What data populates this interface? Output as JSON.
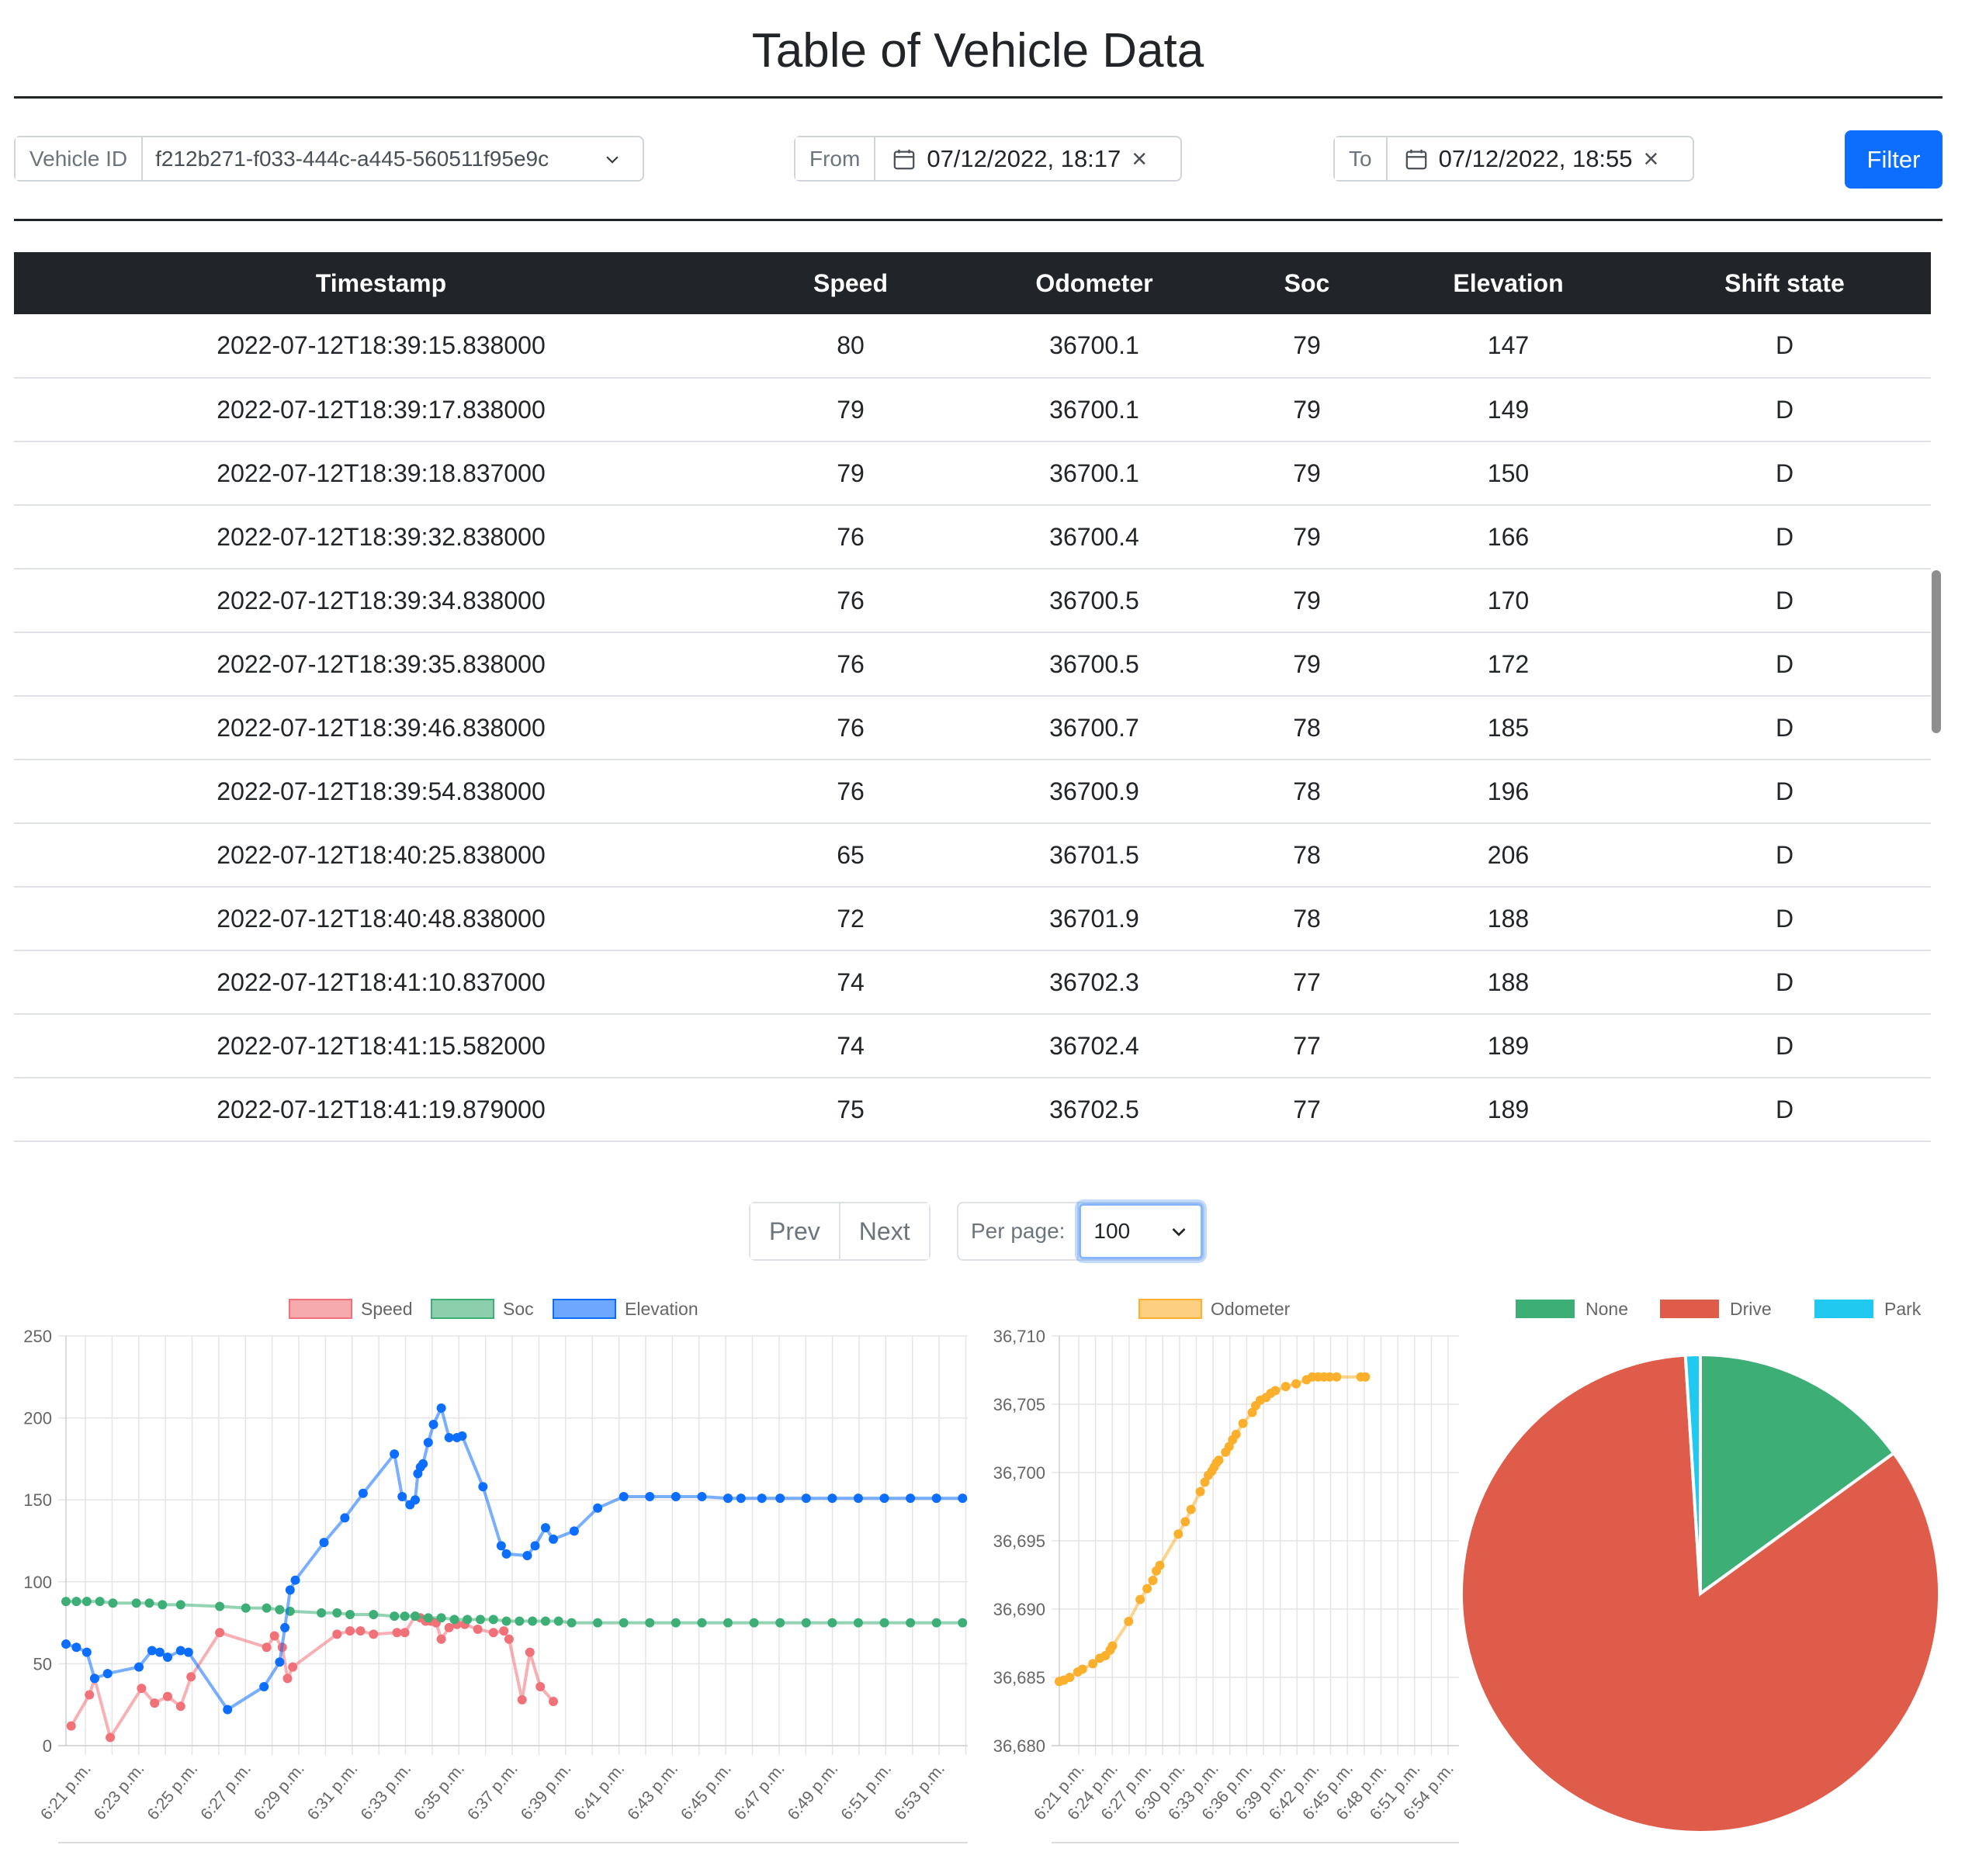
{
  "page": {
    "title": "Table of Vehicle Data"
  },
  "filters": {
    "vehicle_label": "Vehicle ID",
    "vehicle_value": "f212b271-f033-444c-a445-560511f95e9c",
    "from_label": "From",
    "from_value": "07/12/2022, 18:17",
    "to_label": "To",
    "to_value": "07/12/2022, 18:55",
    "filter_button": "Filter",
    "clear_glyph": "×"
  },
  "table": {
    "headers": [
      "Timestamp",
      "Speed",
      "Odometer",
      "Soc",
      "Elevation",
      "Shift state"
    ],
    "rows": [
      [
        "2022-07-12T18:39:15.838000",
        "80",
        "36700.1",
        "79",
        "147",
        "D"
      ],
      [
        "2022-07-12T18:39:17.838000",
        "79",
        "36700.1",
        "79",
        "149",
        "D"
      ],
      [
        "2022-07-12T18:39:18.837000",
        "79",
        "36700.1",
        "79",
        "150",
        "D"
      ],
      [
        "2022-07-12T18:39:32.838000",
        "76",
        "36700.4",
        "79",
        "166",
        "D"
      ],
      [
        "2022-07-12T18:39:34.838000",
        "76",
        "36700.5",
        "79",
        "170",
        "D"
      ],
      [
        "2022-07-12T18:39:35.838000",
        "76",
        "36700.5",
        "79",
        "172",
        "D"
      ],
      [
        "2022-07-12T18:39:46.838000",
        "76",
        "36700.7",
        "78",
        "185",
        "D"
      ],
      [
        "2022-07-12T18:39:54.838000",
        "76",
        "36700.9",
        "78",
        "196",
        "D"
      ],
      [
        "2022-07-12T18:40:25.838000",
        "65",
        "36701.5",
        "78",
        "206",
        "D"
      ],
      [
        "2022-07-12T18:40:48.838000",
        "72",
        "36701.9",
        "78",
        "188",
        "D"
      ],
      [
        "2022-07-12T18:41:10.837000",
        "74",
        "36702.3",
        "77",
        "188",
        "D"
      ],
      [
        "2022-07-12T18:41:15.582000",
        "74",
        "36702.4",
        "77",
        "189",
        "D"
      ],
      [
        "2022-07-12T18:41:19.879000",
        "75",
        "36702.5",
        "77",
        "189",
        "D"
      ]
    ]
  },
  "pagination": {
    "prev": "Prev",
    "next": "Next",
    "per_page_label": "Per page:",
    "per_page_value": "100"
  },
  "colors": {
    "speed": "#f07178",
    "soc": "#3daf76",
    "elevation": "#0d6efd",
    "odometer": "#fbb02d",
    "none": "#3daf76",
    "drive": "#e05c4a",
    "park": "#20c9f0"
  },
  "chart_data": [
    {
      "type": "line",
      "legend": [
        "Speed",
        "Soc",
        "Elevation"
      ],
      "xlabel": "",
      "ylabel": "",
      "ylim": [
        0,
        250
      ],
      "yticks": [
        "0",
        "50",
        "100",
        "150",
        "200",
        "250"
      ],
      "x_ticks": [
        "6:21 p.m.",
        "6:23 p.m.",
        "6:25 p.m.",
        "6:27 p.m.",
        "6:29 p.m.",
        "6:31 p.m.",
        "6:33 p.m.",
        "6:35 p.m.",
        "6:37 p.m.",
        "6:39 p.m.",
        "6:41 p.m.",
        "6:43 p.m.",
        "6:45 p.m.",
        "6:47 p.m.",
        "6:49 p.m.",
        "6:51 p.m.",
        "6:53 p.m."
      ],
      "x_range": [
        20.6,
        55.2
      ],
      "series": [
        {
          "name": "Speed",
          "points": [
            [
              20.8,
              12
            ],
            [
              21.5,
              31
            ],
            [
              21.7,
              41
            ],
            [
              22.3,
              5
            ],
            [
              23.5,
              35
            ],
            [
              24.0,
              26
            ],
            [
              24.5,
              30
            ],
            [
              25.0,
              24
            ],
            [
              25.4,
              42
            ],
            [
              26.5,
              69
            ],
            [
              28.3,
              60
            ],
            [
              28.6,
              67
            ],
            [
              28.9,
              60
            ],
            [
              29.1,
              41
            ],
            [
              29.3,
              48
            ],
            [
              31.0,
              68
            ],
            [
              31.5,
              70
            ],
            [
              31.9,
              70
            ],
            [
              32.4,
              68
            ],
            [
              33.3,
              69
            ],
            [
              33.6,
              69
            ],
            [
              34.0,
              79
            ],
            [
              34.2,
              78
            ],
            [
              34.4,
              76
            ],
            [
              34.6,
              76
            ],
            [
              34.8,
              75
            ],
            [
              35.0,
              65
            ],
            [
              35.3,
              72
            ],
            [
              35.6,
              74
            ],
            [
              35.9,
              74
            ],
            [
              36.4,
              71
            ],
            [
              37.0,
              69
            ],
            [
              37.4,
              70
            ],
            [
              37.6,
              65
            ],
            [
              38.1,
              28
            ],
            [
              38.4,
              57
            ],
            [
              38.8,
              36
            ],
            [
              39.3,
              27
            ]
          ]
        },
        {
          "name": "Soc",
          "points": [
            [
              20.6,
              88
            ],
            [
              21.0,
              88
            ],
            [
              21.4,
              88
            ],
            [
              21.9,
              88
            ],
            [
              22.4,
              87
            ],
            [
              23.3,
              87
            ],
            [
              23.8,
              87
            ],
            [
              24.3,
              86
            ],
            [
              25.0,
              86
            ],
            [
              26.5,
              85
            ],
            [
              27.5,
              84
            ],
            [
              28.3,
              84
            ],
            [
              28.8,
              83
            ],
            [
              29.2,
              82
            ],
            [
              30.4,
              81
            ],
            [
              31.0,
              81
            ],
            [
              31.5,
              80
            ],
            [
              32.4,
              80
            ],
            [
              33.2,
              79
            ],
            [
              33.6,
              79
            ],
            [
              34.0,
              79
            ],
            [
              34.5,
              78
            ],
            [
              35.0,
              78
            ],
            [
              35.5,
              77
            ],
            [
              36.0,
              77
            ],
            [
              36.5,
              77
            ],
            [
              37.0,
              77
            ],
            [
              37.5,
              76
            ],
            [
              38.0,
              76
            ],
            [
              38.5,
              76
            ],
            [
              39.0,
              76
            ],
            [
              39.5,
              76
            ],
            [
              40.0,
              75
            ],
            [
              41.0,
              75
            ],
            [
              42.0,
              75
            ],
            [
              43.0,
              75
            ],
            [
              44.0,
              75
            ],
            [
              45.0,
              75
            ],
            [
              46.0,
              75
            ],
            [
              47.0,
              75
            ],
            [
              48.0,
              75
            ],
            [
              49.0,
              75
            ],
            [
              50.0,
              75
            ],
            [
              51.0,
              75
            ],
            [
              52.0,
              75
            ],
            [
              53.0,
              75
            ],
            [
              54.0,
              75
            ],
            [
              55.0,
              75
            ]
          ]
        },
        {
          "name": "Elevation",
          "points": [
            [
              20.6,
              62
            ],
            [
              21.0,
              60
            ],
            [
              21.4,
              57
            ],
            [
              21.7,
              41
            ],
            [
              22.2,
              44
            ],
            [
              23.4,
              48
            ],
            [
              23.9,
              58
            ],
            [
              24.2,
              57
            ],
            [
              24.5,
              54
            ],
            [
              25.0,
              58
            ],
            [
              25.3,
              57
            ],
            [
              26.8,
              22
            ],
            [
              28.2,
              36
            ],
            [
              28.8,
              51
            ],
            [
              29.0,
              72
            ],
            [
              29.2,
              95
            ],
            [
              29.4,
              101
            ],
            [
              30.5,
              124
            ],
            [
              31.3,
              139
            ],
            [
              32.0,
              154
            ],
            [
              33.2,
              178
            ],
            [
              33.5,
              152
            ],
            [
              33.8,
              147
            ],
            [
              34.0,
              150
            ],
            [
              34.1,
              166
            ],
            [
              34.2,
              170
            ],
            [
              34.3,
              172
            ],
            [
              34.5,
              185
            ],
            [
              34.7,
              196
            ],
            [
              35.0,
              206
            ],
            [
              35.3,
              188
            ],
            [
              35.6,
              188
            ],
            [
              35.8,
              189
            ],
            [
              36.6,
              158
            ],
            [
              37.3,
              122
            ],
            [
              37.5,
              117
            ],
            [
              38.3,
              116
            ],
            [
              38.6,
              122
            ],
            [
              39.0,
              133
            ],
            [
              39.3,
              126
            ],
            [
              40.1,
              131
            ],
            [
              41.0,
              145
            ],
            [
              42.0,
              152
            ],
            [
              43.0,
              152
            ],
            [
              44.0,
              152
            ],
            [
              45.0,
              152
            ],
            [
              46.0,
              151
            ],
            [
              46.5,
              151
            ],
            [
              47.3,
              151
            ],
            [
              48.0,
              151
            ],
            [
              49.0,
              151
            ],
            [
              50.0,
              151
            ],
            [
              51.0,
              151
            ],
            [
              52.0,
              151
            ],
            [
              53.0,
              151
            ],
            [
              54.0,
              151
            ],
            [
              55.0,
              151
            ]
          ]
        }
      ]
    },
    {
      "type": "line",
      "legend": [
        "Odometer"
      ],
      "ylim": [
        36680,
        36710
      ],
      "yticks": [
        "36,680",
        "36,685",
        "36,690",
        "36,695",
        "36,700",
        "36,705",
        "36,710"
      ],
      "x_ticks": [
        "6:21 p.m.",
        "6:24 p.m.",
        "6:27 p.m.",
        "6:30 p.m.",
        "6:33 p.m.",
        "6:36 p.m.",
        "6:39 p.m.",
        "6:42 p.m.",
        "6:45 p.m.",
        "6:48 p.m.",
        "6:51 p.m.",
        "6:54 p.m."
      ],
      "x_range": [
        20.6,
        55.2
      ],
      "series": [
        {
          "name": "Odometer",
          "points": [
            [
              20.6,
              36684.7
            ],
            [
              21.0,
              36684.8
            ],
            [
              21.5,
              36685.0
            ],
            [
              22.2,
              36685.4
            ],
            [
              22.6,
              36685.6
            ],
            [
              23.5,
              36686.0
            ],
            [
              24.1,
              36686.4
            ],
            [
              24.6,
              36686.6
            ],
            [
              25.0,
              36687.0
            ],
            [
              25.2,
              36687.3
            ],
            [
              26.6,
              36689.1
            ],
            [
              27.6,
              36690.7
            ],
            [
              28.2,
              36691.5
            ],
            [
              28.7,
              36692.1
            ],
            [
              29.0,
              36692.8
            ],
            [
              29.3,
              36693.2
            ],
            [
              30.9,
              36695.5
            ],
            [
              31.5,
              36696.4
            ],
            [
              32.0,
              36697.3
            ],
            [
              32.8,
              36698.6
            ],
            [
              33.2,
              36699.3
            ],
            [
              33.5,
              36699.8
            ],
            [
              33.8,
              36700.1
            ],
            [
              34.0,
              36700.4
            ],
            [
              34.2,
              36700.7
            ],
            [
              34.4,
              36700.9
            ],
            [
              35.0,
              36701.5
            ],
            [
              35.3,
              36701.9
            ],
            [
              35.6,
              36702.4
            ],
            [
              35.9,
              36702.8
            ],
            [
              36.5,
              36703.6
            ],
            [
              37.3,
              36704.4
            ],
            [
              37.6,
              36704.9
            ],
            [
              38.0,
              36705.3
            ],
            [
              38.5,
              36705.5
            ],
            [
              38.9,
              36705.8
            ],
            [
              39.3,
              36706.0
            ],
            [
              40.2,
              36706.3
            ],
            [
              41.1,
              36706.5
            ],
            [
              42.0,
              36706.8
            ],
            [
              42.5,
              36707.0
            ],
            [
              43.0,
              36707.0
            ],
            [
              43.5,
              36707.0
            ],
            [
              44.0,
              36707.0
            ],
            [
              44.6,
              36707.0
            ],
            [
              46.7,
              36707.0
            ],
            [
              47.1,
              36707.0
            ]
          ]
        }
      ]
    },
    {
      "type": "pie",
      "legend": [
        "None",
        "Drive",
        "Park"
      ],
      "values": [
        15,
        84,
        1
      ]
    }
  ]
}
